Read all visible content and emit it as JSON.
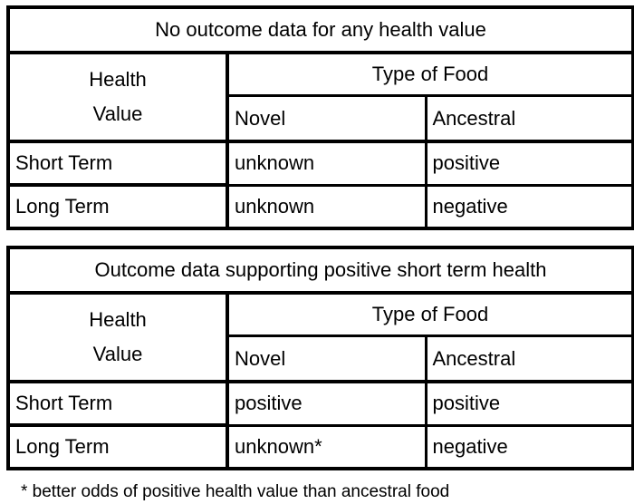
{
  "page": {
    "background_color": "#ffffff",
    "border_color": "#000000",
    "text_color": "#000000"
  },
  "tables": [
    {
      "title": "No outcome data for any health value",
      "stub_header": "Health\nValue",
      "col_group_header": "Type of Food",
      "columns": [
        "Novel",
        "Ancestral"
      ],
      "rows": [
        {
          "label": "Short Term",
          "values": [
            "unknown",
            "positive"
          ]
        },
        {
          "label": "Long Term",
          "values": [
            "unknown",
            "negative"
          ]
        }
      ]
    },
    {
      "title": "Outcome data supporting positive short term health",
      "stub_header": "Health\nValue",
      "col_group_header": "Type of Food",
      "columns": [
        "Novel",
        "Ancestral"
      ],
      "rows": [
        {
          "label": "Short Term",
          "values": [
            "positive",
            "positive"
          ]
        },
        {
          "label": "Long Term",
          "values": [
            "unknown*",
            "negative"
          ]
        }
      ]
    }
  ],
  "footnote": "* better odds of positive health value than ancestral food"
}
